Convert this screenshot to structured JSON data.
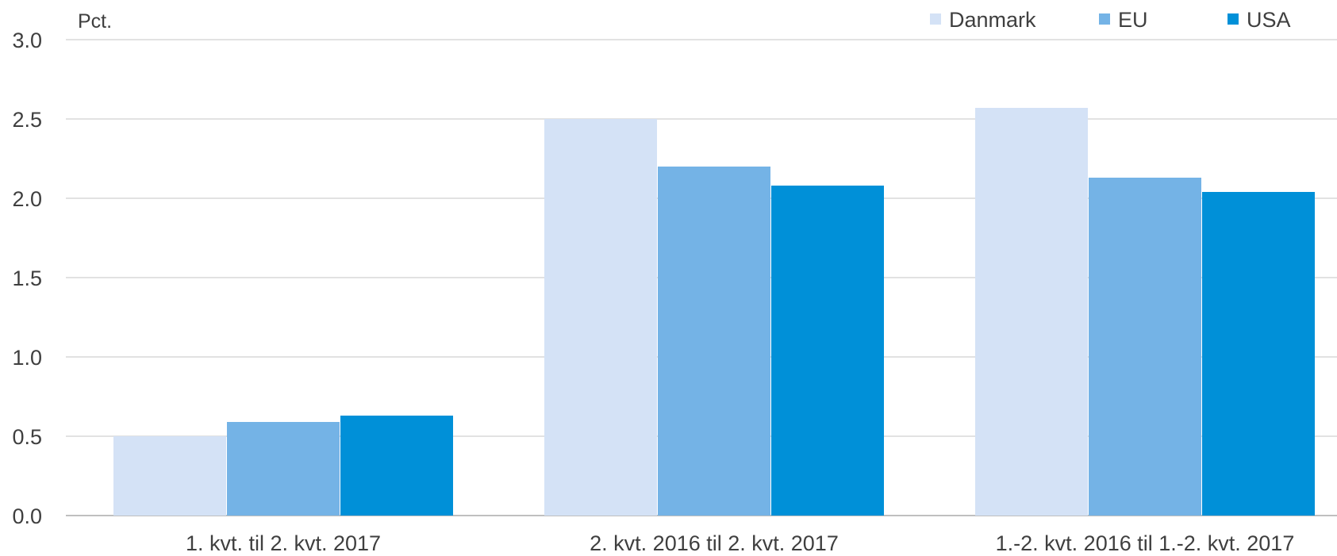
{
  "chart_data": {
    "type": "bar",
    "ylabel": "Pct.",
    "ylim": [
      0,
      3.0
    ],
    "yticks": [
      "0.0",
      "0.5",
      "1.0",
      "1.5",
      "2.0",
      "2.5",
      "3.0"
    ],
    "categories": [
      "1. kvt. til 2. kvt. 2017",
      "2. kvt. 2016 til 2. kvt. 2017",
      "1.-2. kvt. 2016 til 1.-2. kvt. 2017"
    ],
    "series": [
      {
        "name": "Danmark",
        "color": "#d4e2f6",
        "values": [
          0.5,
          2.5,
          2.57
        ]
      },
      {
        "name": "EU",
        "color": "#74b3e6",
        "values": [
          0.59,
          2.2,
          2.13
        ]
      },
      {
        "name": "USA",
        "color": "#0090d8",
        "values": [
          0.63,
          2.08,
          2.04
        ]
      }
    ],
    "grid": true,
    "legend_position": "top-right"
  }
}
